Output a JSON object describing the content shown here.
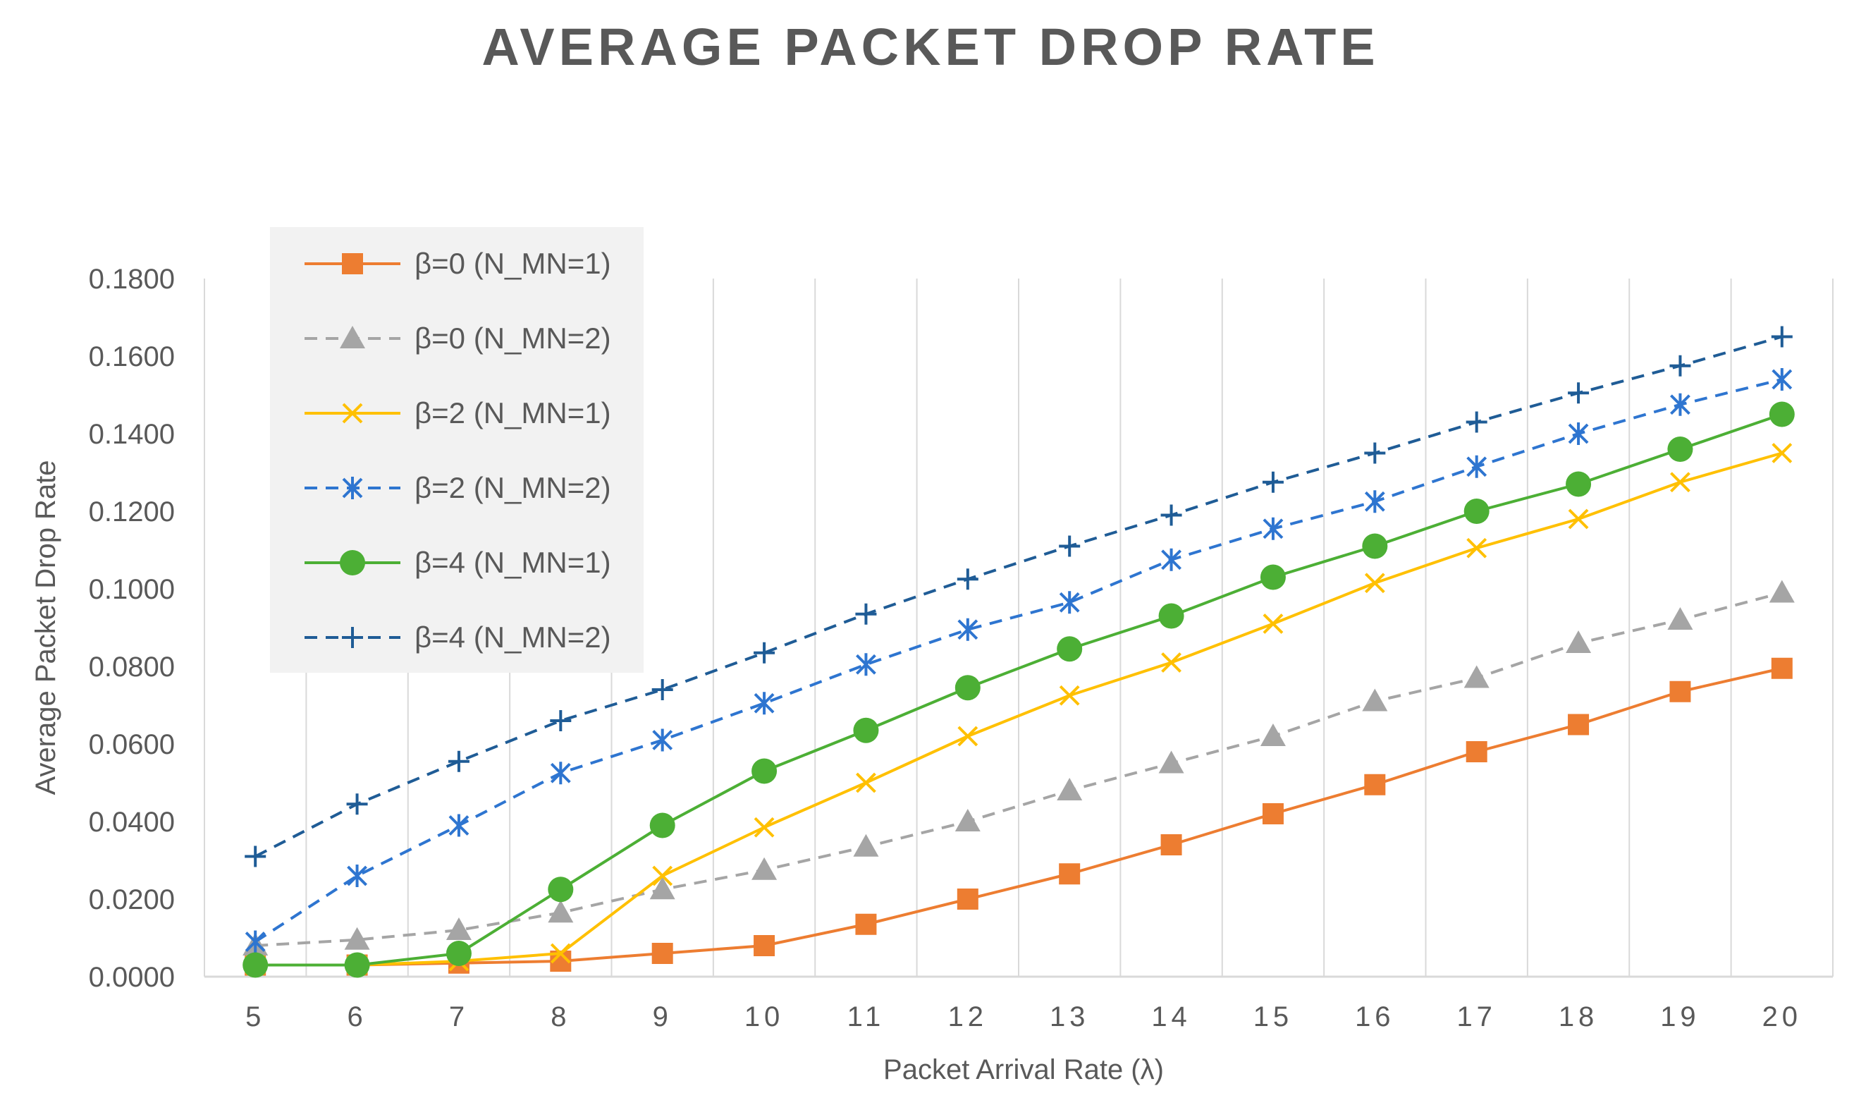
{
  "chart_data": {
    "type": "line",
    "title": "AVERAGE PACKET DROP RATE",
    "xlabel": "Packet Arrival Rate  (λ)",
    "ylabel": "Average Packet Drop Rate",
    "categories": [
      "5",
      "6",
      "7",
      "8",
      "9",
      "10",
      "11",
      "12",
      "13",
      "14",
      "15",
      "16",
      "17",
      "18",
      "19",
      "20"
    ],
    "ylim": [
      0,
      0.18
    ],
    "yticks": [
      "0.0000",
      "0.0200",
      "0.0400",
      "0.0600",
      "0.0800",
      "0.1000",
      "0.1200",
      "0.1400",
      "0.1600",
      "0.1800"
    ],
    "grid": "vertical",
    "legend_position": "top-left",
    "series": [
      {
        "name": "β=0 (N_MN=1)",
        "color": "#ED7D31",
        "dash": "solid",
        "marker": "square",
        "values": [
          0.003,
          0.003,
          0.0035,
          0.004,
          0.006,
          0.008,
          0.0135,
          0.02,
          0.0265,
          0.034,
          0.042,
          0.0495,
          0.058,
          0.065,
          0.0735,
          0.0795
        ]
      },
      {
        "name": "β=0 (N_MN=2)",
        "color": "#A5A5A5",
        "dash": "dashed",
        "marker": "triangle",
        "values": [
          0.008,
          0.0095,
          0.012,
          0.0165,
          0.0225,
          0.0275,
          0.0335,
          0.04,
          0.048,
          0.055,
          0.062,
          0.071,
          0.077,
          0.086,
          0.092,
          0.099
        ]
      },
      {
        "name": "β=2 (N_MN=1)",
        "color": "#FFC000",
        "dash": "solid",
        "marker": "x",
        "values": [
          0.003,
          0.003,
          0.004,
          0.006,
          0.026,
          0.0385,
          0.05,
          0.062,
          0.0725,
          0.081,
          0.091,
          0.1015,
          0.1105,
          0.118,
          0.1275,
          0.135
        ]
      },
      {
        "name": "β=2 (N_MN=2)",
        "color": "#2E75D0",
        "dash": "dashed",
        "marker": "asterisk",
        "values": [
          0.009,
          0.026,
          0.039,
          0.0525,
          0.061,
          0.0705,
          0.0805,
          0.0895,
          0.0965,
          0.1075,
          0.1155,
          0.1225,
          0.1315,
          0.14,
          0.1475,
          0.154
        ]
      },
      {
        "name": "β=4 (N_MN=1)",
        "color": "#4CAF35",
        "dash": "solid",
        "marker": "circle",
        "values": [
          0.003,
          0.003,
          0.006,
          0.0225,
          0.039,
          0.053,
          0.0635,
          0.0745,
          0.0845,
          0.093,
          0.103,
          0.111,
          0.12,
          0.127,
          0.136,
          0.145
        ]
      },
      {
        "name": "β=4 (N_MN=2)",
        "color": "#1F5C96",
        "dash": "dashed",
        "marker": "plus",
        "values": [
          0.031,
          0.0445,
          0.0555,
          0.066,
          0.074,
          0.0835,
          0.0935,
          0.1025,
          0.111,
          0.119,
          0.1275,
          0.135,
          0.143,
          0.1505,
          0.1575,
          0.165
        ]
      }
    ]
  }
}
